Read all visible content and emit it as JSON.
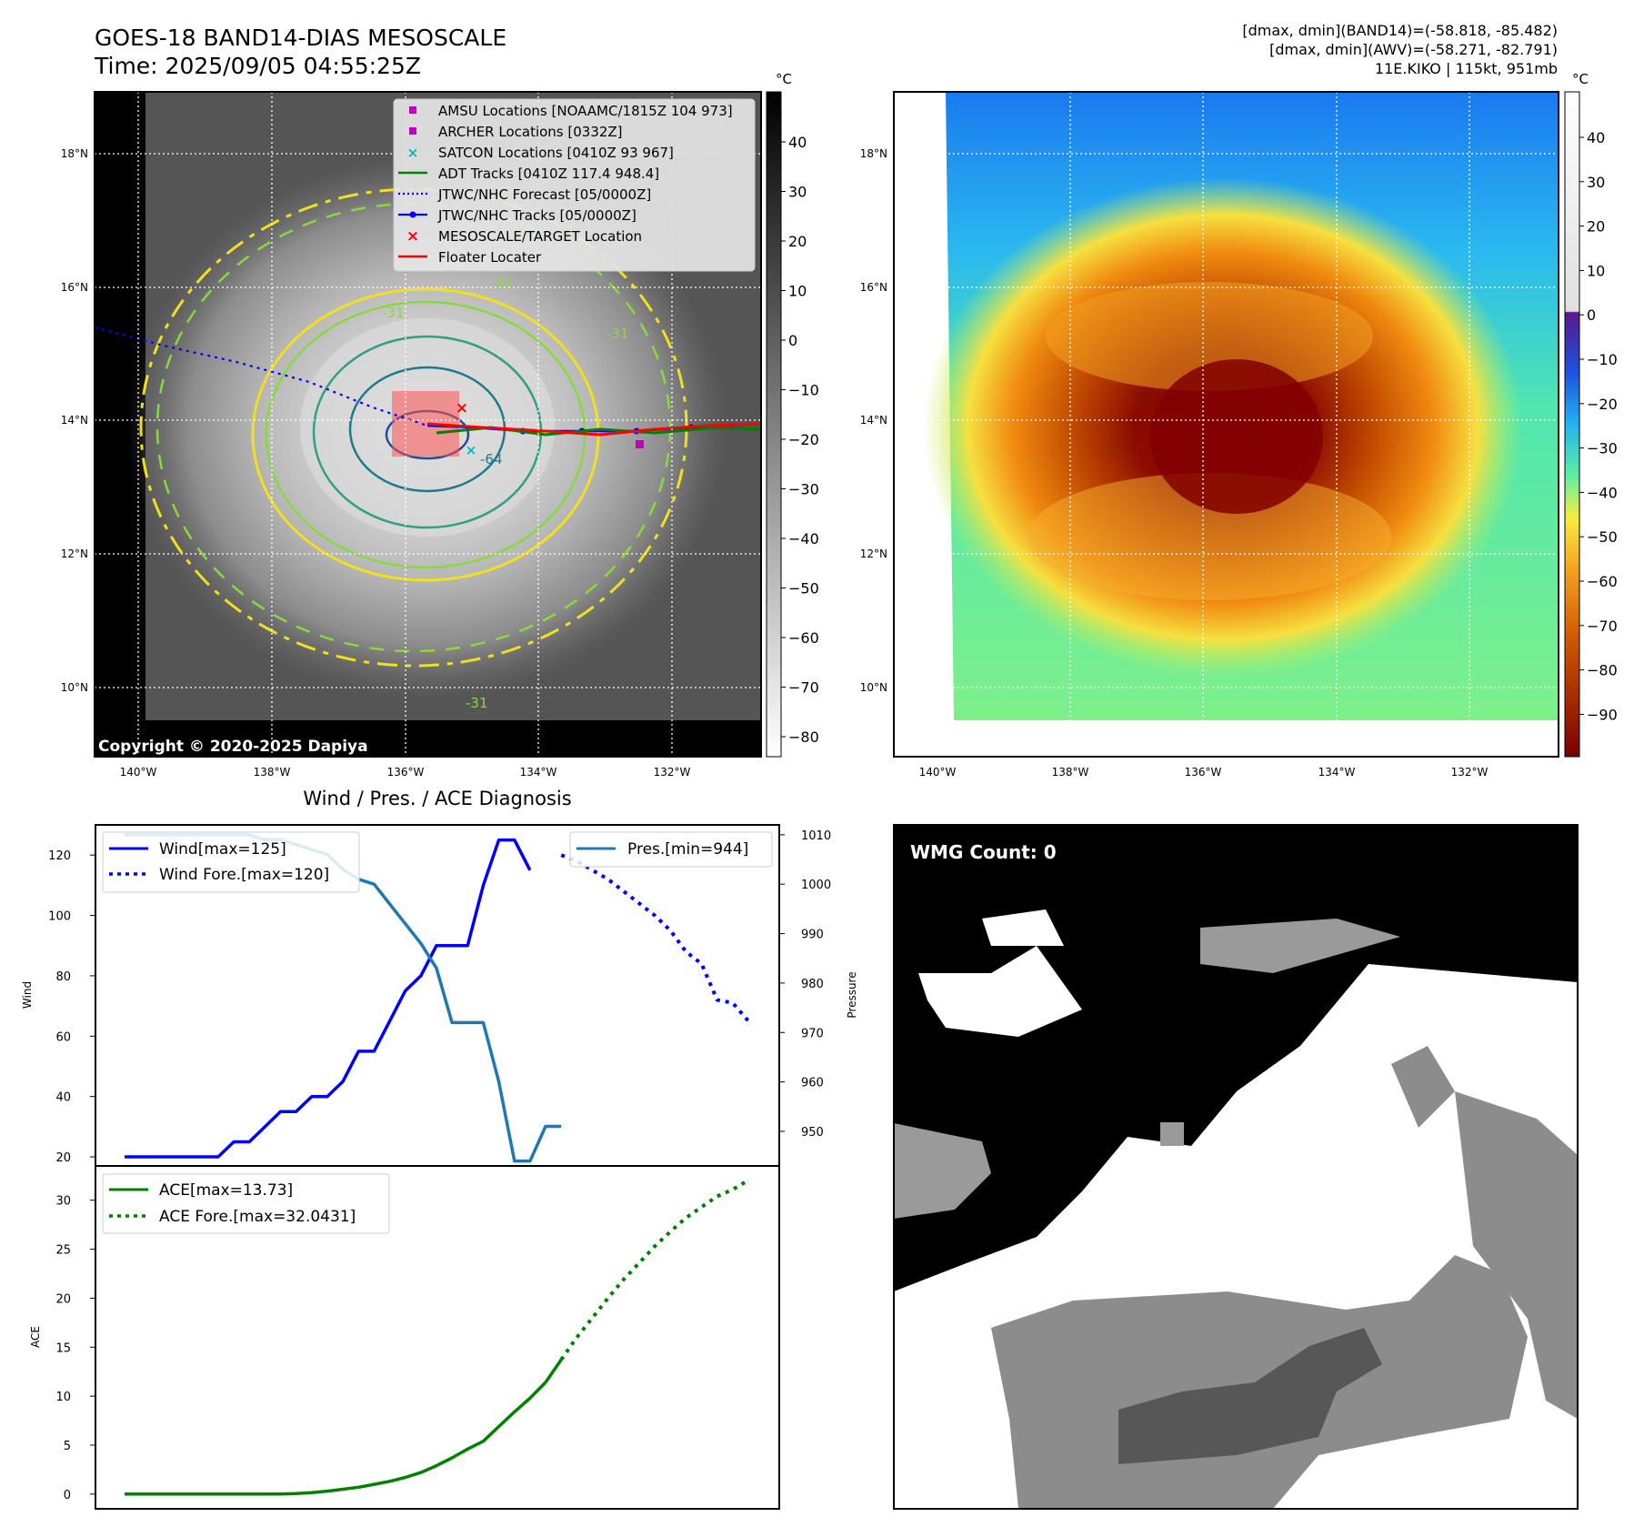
{
  "header": {
    "title_line1": "GOES-18 BAND14-DIAS MESOSCALE",
    "title_line2": "Time: 2025/09/05 04:55:25Z",
    "info_line1": "[dmax, dmin](BAND14)=(-58.818, -85.482)",
    "info_line2": "[dmax, dmin](AWV)=(-58.271, -82.791)",
    "info_line3": "11E.KIKO | 115kt, 951mb"
  },
  "ir_panel": {
    "lat_labels": [
      "18°N",
      "16°N",
      "14°N",
      "12°N",
      "10°N"
    ],
    "lon_labels": [
      "140°W",
      "138°W",
      "136°W",
      "134°W",
      "132°W"
    ],
    "colorbar_unit": "°C",
    "colorbar_ticks": [
      "40",
      "30",
      "20",
      "10",
      "0",
      "−10",
      "−20",
      "−30",
      "−40",
      "−50",
      "−60",
      "−70",
      "−80"
    ],
    "contour_labels": [
      "-31",
      "-31",
      "-31",
      "-64",
      "-31"
    ],
    "copyright": "Copyright © 2020-2025 Dapiya",
    "legend": [
      {
        "label": "AMSU Locations [NOAAMC/1815Z 104 973]",
        "marker": "square",
        "color": "#c000c0"
      },
      {
        "label": "ARCHER Locations [0332Z]",
        "marker": "square",
        "color": "#c000c0"
      },
      {
        "label": "SATCON Locations [0410Z 93 967]",
        "marker": "x",
        "color": "#00b8b8"
      },
      {
        "label": "ADT Tracks [0410Z 117.4 948.4]",
        "marker": "line",
        "color": "#008000"
      },
      {
        "label": "JTWC/NHC Forecast [05/0000Z]",
        "marker": "dotted",
        "color": "#0000ff"
      },
      {
        "label": "JTWC/NHC Tracks [05/0000Z]",
        "marker": "line-dot",
        "color": "#0000ff"
      },
      {
        "label": "MESOSCALE/TARGET Location",
        "marker": "x",
        "color": "#ff0000"
      },
      {
        "label": "Floater Locater",
        "marker": "line",
        "color": "#ff0000"
      }
    ]
  },
  "color_panel": {
    "lat_labels": [
      "18°N",
      "16°N",
      "14°N",
      "12°N",
      "10°N"
    ],
    "lon_labels": [
      "140°W",
      "138°W",
      "136°W",
      "134°W",
      "132°W"
    ],
    "colorbar_unit": "°C",
    "colorbar_ticks": [
      "40",
      "30",
      "20",
      "10",
      "0",
      "−10",
      "−20",
      "−30",
      "−40",
      "−50",
      "−60",
      "−70",
      "−80",
      "−90"
    ]
  },
  "wmg_panel": {
    "label": "WMG Count: 0"
  },
  "chart_data": [
    {
      "type": "line",
      "title": "Wind / Pres. / ACE Diagnosis",
      "ylabel": "Wind",
      "ylabel_right": "Pressure",
      "ylim": [
        17,
        130
      ],
      "ylim_right": [
        943,
        1012
      ],
      "yticks": [
        20,
        40,
        60,
        80,
        100,
        120
      ],
      "yticks_right": [
        950,
        960,
        970,
        980,
        990,
        1000,
        1010
      ],
      "x_count": 41,
      "series": [
        {
          "name": "Wind[max=125]",
          "style": "solid",
          "color": "#0000ff",
          "x": [
            0,
            1,
            2,
            3,
            4,
            5,
            6,
            7,
            8,
            9,
            10,
            11,
            12,
            13,
            14,
            15,
            16,
            17,
            18,
            19,
            20,
            21,
            22,
            23,
            24,
            25,
            26
          ],
          "values": [
            20,
            20,
            20,
            20,
            20,
            20,
            20,
            25,
            25,
            30,
            35,
            35,
            40,
            40,
            45,
            55,
            55,
            65,
            75,
            80,
            90,
            90,
            90,
            110,
            125,
            125,
            115
          ]
        },
        {
          "name": "Wind Fore.[max=120]",
          "style": "dotted",
          "color": "#0000ff",
          "x": [
            28,
            29,
            30,
            31,
            32,
            33,
            34,
            35,
            36,
            37,
            38,
            39,
            40
          ],
          "values": [
            120,
            118,
            115,
            112,
            108,
            104,
            100,
            95,
            88,
            84,
            72,
            71,
            65
          ]
        },
        {
          "name": "Pres.[min=944]",
          "style": "solid",
          "color": "#1f77b4",
          "axis": "right",
          "x": [
            0,
            1,
            2,
            3,
            4,
            5,
            6,
            7,
            8,
            9,
            10,
            11,
            12,
            13,
            14,
            15,
            16,
            17,
            18,
            19,
            20,
            21,
            22,
            23,
            24,
            25,
            26,
            27,
            28
          ],
          "values": [
            1010,
            1010,
            1010,
            1010,
            1010,
            1010,
            1010,
            1010,
            1010,
            1009,
            1009,
            1008,
            1007,
            1006,
            1003,
            1001,
            1000,
            996,
            992,
            988,
            983,
            972,
            972,
            972,
            960,
            944,
            944,
            951,
            951
          ]
        }
      ]
    },
    {
      "type": "line",
      "ylabel": "ACE",
      "ylim": [
        -1.5,
        33.5
      ],
      "yticks": [
        0,
        5,
        10,
        15,
        20,
        25,
        30
      ],
      "x_count": 41,
      "series": [
        {
          "name": "ACE[max=13.73]",
          "style": "solid",
          "color": "#008000",
          "x": [
            0,
            3,
            6,
            9,
            10,
            11,
            12,
            13,
            14,
            15,
            16,
            17,
            18,
            19,
            20,
            21,
            22,
            23,
            24,
            25,
            26,
            27,
            28
          ],
          "values": [
            0,
            0,
            0,
            0,
            0,
            0.05,
            0.15,
            0.3,
            0.5,
            0.7,
            1.0,
            1.3,
            1.7,
            2.2,
            2.9,
            3.7,
            4.6,
            5.4,
            6.9,
            8.4,
            9.8,
            11.4,
            13.73
          ]
        },
        {
          "name": "ACE Fore.[max=32.0431]",
          "style": "dotted",
          "color": "#008000",
          "x": [
            28,
            29,
            30,
            31,
            32,
            33,
            34,
            35,
            36,
            37,
            38,
            39,
            40
          ],
          "values": [
            13.73,
            16.0,
            18.0,
            20.0,
            21.9,
            23.6,
            25.3,
            26.8,
            28.2,
            29.3,
            30.4,
            31.1,
            32.04
          ]
        }
      ]
    }
  ]
}
